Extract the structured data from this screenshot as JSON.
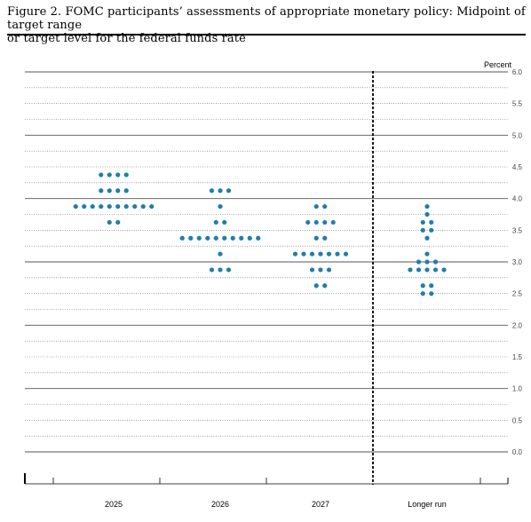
{
  "figure": {
    "caption_line1": "Figure 2.  FOMC participants’ assessments of appropriate monetary policy:  Midpoint of target range",
    "caption_line2": "or target level for the federal funds rate"
  },
  "chart_data": {
    "type": "scatter",
    "title": "Figure 2. FOMC participants’ assessments of appropriate monetary policy: Midpoint of target range or target level for the federal funds rate",
    "ylabel": "Percent",
    "ylim": [
      0.0,
      6.0
    ],
    "y_ticks": [
      "0.0",
      "0.5",
      "1.0",
      "1.5",
      "2.0",
      "2.5",
      "3.0",
      "3.5",
      "4.0",
      "4.5",
      "5.0",
      "5.5",
      "6.0"
    ],
    "categories": [
      "2025",
      "2026",
      "2027",
      "Longer run"
    ],
    "grid": true,
    "marker_color": "#1f7fa8",
    "series": [
      {
        "values": [
          {
            "y": 4.375,
            "count": 4
          },
          {
            "y": 4.125,
            "count": 4
          },
          {
            "y": 3.875,
            "count": 10
          },
          {
            "y": 3.625,
            "count": 2
          }
        ]
      },
      {
        "values": [
          {
            "y": 4.125,
            "count": 3
          },
          {
            "y": 3.875,
            "count": 1
          },
          {
            "y": 3.625,
            "count": 2
          },
          {
            "y": 3.375,
            "count": 10
          },
          {
            "y": 3.125,
            "count": 1
          },
          {
            "y": 2.875,
            "count": 3
          }
        ]
      },
      {
        "values": [
          {
            "y": 3.875,
            "count": 2
          },
          {
            "y": 3.625,
            "count": 4
          },
          {
            "y": 3.375,
            "count": 2
          },
          {
            "y": 3.125,
            "count": 7
          },
          {
            "y": 2.875,
            "count": 3
          },
          {
            "y": 2.625,
            "count": 2
          }
        ]
      },
      {
        "values": [
          {
            "y": 3.875,
            "count": 1
          },
          {
            "y": 3.75,
            "count": 1
          },
          {
            "y": 3.625,
            "count": 2
          },
          {
            "y": 3.5,
            "count": 2
          },
          {
            "y": 3.375,
            "count": 1
          },
          {
            "y": 3.125,
            "count": 1
          },
          {
            "y": 3.0,
            "count": 3
          },
          {
            "y": 2.875,
            "count": 5
          },
          {
            "y": 2.625,
            "count": 2
          },
          {
            "y": 2.5,
            "count": 2
          }
        ]
      }
    ]
  }
}
